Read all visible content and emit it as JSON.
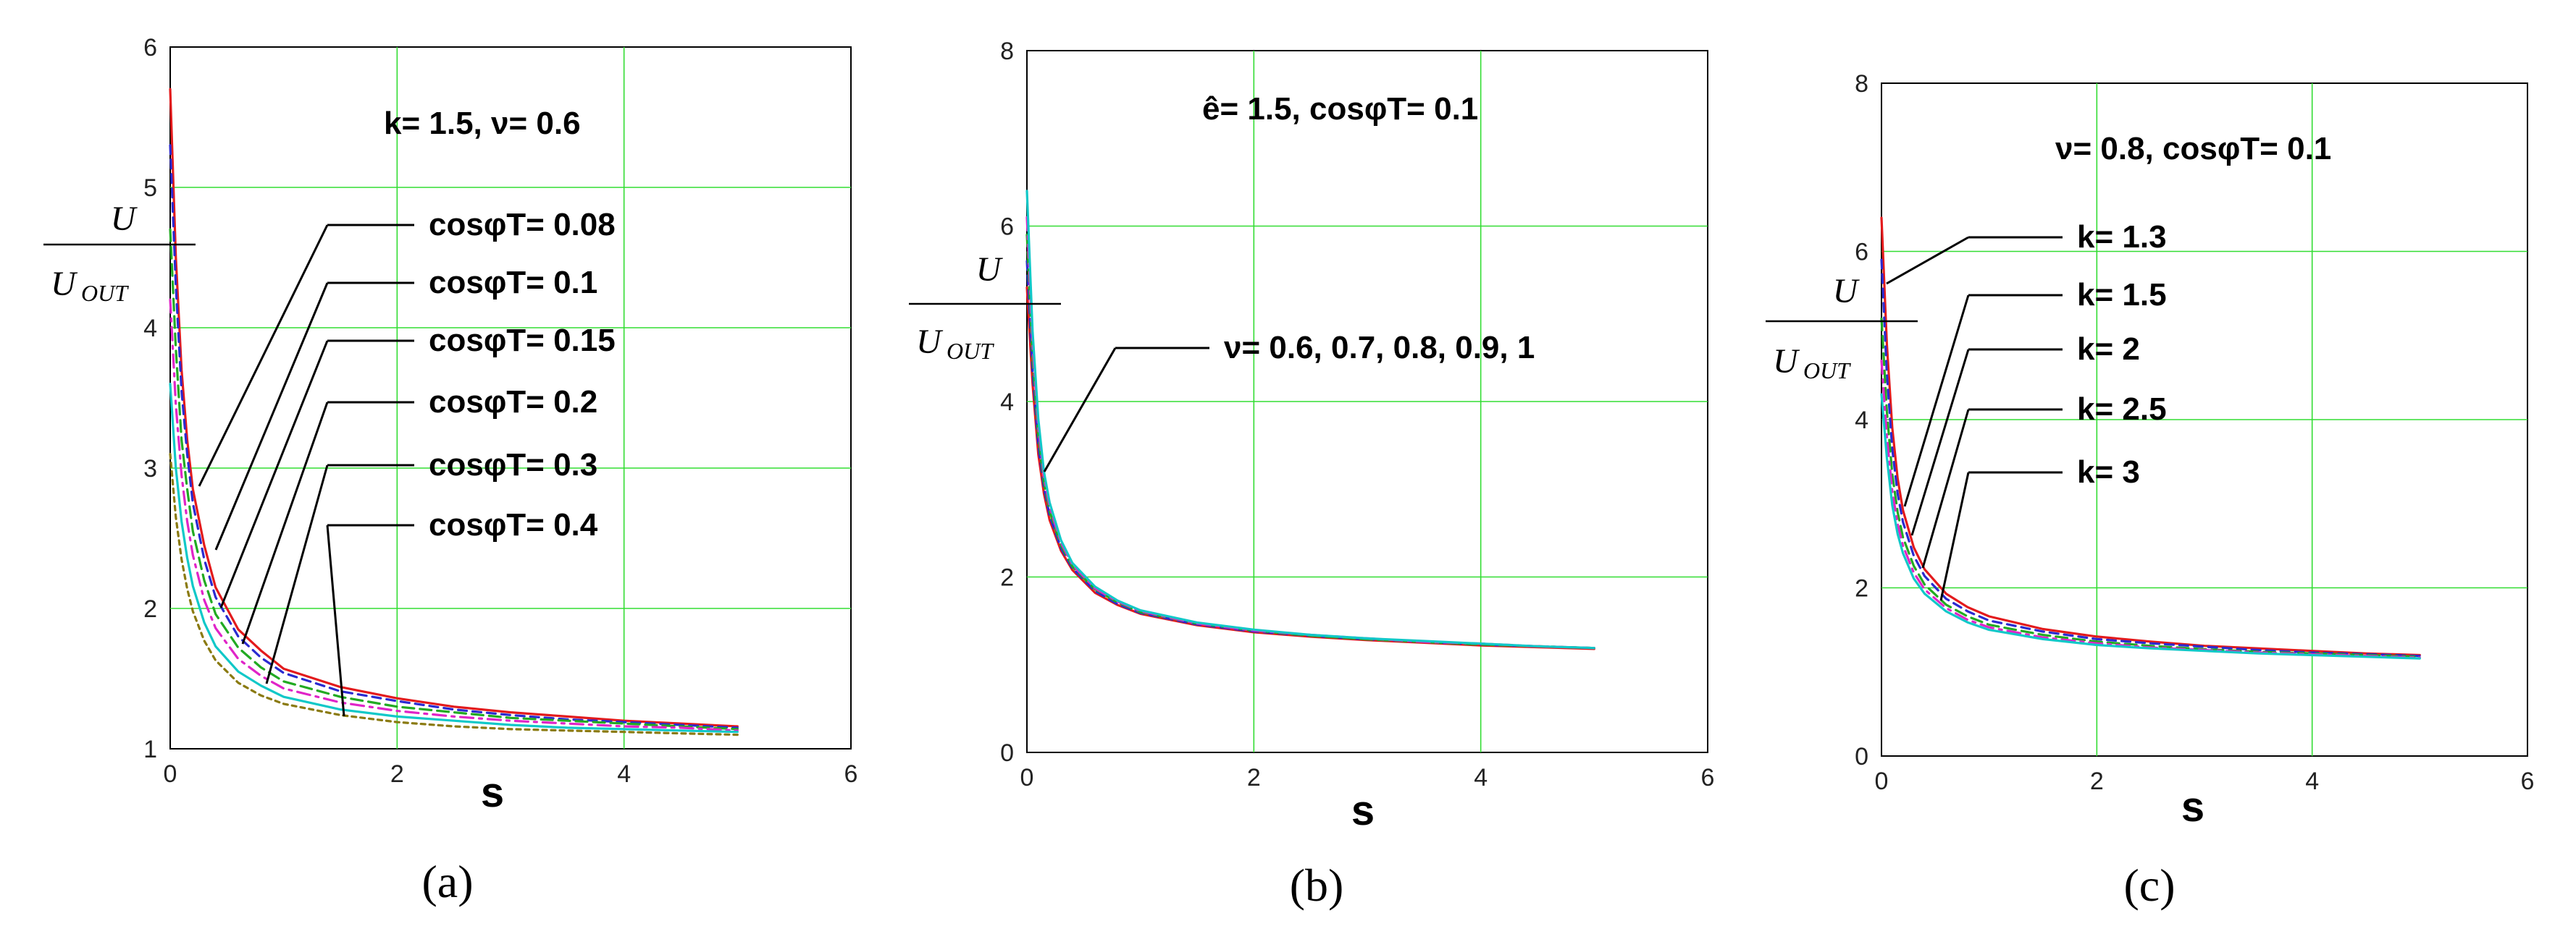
{
  "chart_data": [
    {
      "type": "line",
      "panel": "(a)",
      "panel_letter": "a",
      "title": "k= 1.5, ν= 0.6",
      "xlabel": "s",
      "ylabel_num": "U",
      "ylabel_den": "U",
      "ylabel_den_sub": "OUT",
      "xlim": [
        0,
        6
      ],
      "ylim": [
        1,
        6
      ],
      "xticks": [
        "0",
        "2",
        "4",
        "6"
      ],
      "yticks": [
        "1",
        "2",
        "3",
        "4",
        "5",
        "6"
      ],
      "grid": true,
      "series": [
        {
          "name": "cosφT= 0.08",
          "color": "#e31a1c",
          "dash": "",
          "x": [
            0,
            0.05,
            0.1,
            0.15,
            0.2,
            0.3,
            0.4,
            0.6,
            0.8,
            1,
            1.5,
            2,
            2.5,
            3,
            3.5,
            4,
            4.5,
            5
          ],
          "y": [
            5.7,
            4.5,
            3.7,
            3.2,
            2.85,
            2.45,
            2.15,
            1.85,
            1.7,
            1.57,
            1.44,
            1.36,
            1.3,
            1.26,
            1.23,
            1.2,
            1.18,
            1.16
          ]
        },
        {
          "name": "cosφT= 0.1",
          "color": "#2a2ad0",
          "dash": "12,8",
          "x": [
            0,
            0.05,
            0.1,
            0.15,
            0.2,
            0.3,
            0.4,
            0.6,
            0.8,
            1,
            1.5,
            2,
            2.5,
            3,
            3.5,
            4,
            4.5,
            5
          ],
          "y": [
            5.3,
            4.3,
            3.55,
            3.1,
            2.75,
            2.35,
            2.08,
            1.8,
            1.65,
            1.54,
            1.41,
            1.34,
            1.28,
            1.24,
            1.21,
            1.19,
            1.17,
            1.15
          ]
        },
        {
          "name": "cosφT= 0.15",
          "color": "#22aa22",
          "dash": "16,8",
          "x": [
            0,
            0.05,
            0.1,
            0.15,
            0.2,
            0.3,
            0.4,
            0.6,
            0.8,
            1,
            1.5,
            2,
            2.5,
            3,
            3.5,
            4,
            4.5,
            5
          ],
          "y": [
            4.7,
            3.85,
            3.2,
            2.85,
            2.55,
            2.2,
            1.96,
            1.72,
            1.58,
            1.48,
            1.37,
            1.3,
            1.26,
            1.22,
            1.2,
            1.18,
            1.16,
            1.14
          ]
        },
        {
          "name": "cosφT= 0.2",
          "color": "#e024c8",
          "dash": "18,8,4,8",
          "x": [
            0,
            0.05,
            0.1,
            0.15,
            0.2,
            0.3,
            0.4,
            0.6,
            0.8,
            1,
            1.5,
            2,
            2.5,
            3,
            3.5,
            4,
            4.5,
            5
          ],
          "y": [
            4.2,
            3.45,
            2.95,
            2.62,
            2.38,
            2.06,
            1.86,
            1.64,
            1.52,
            1.43,
            1.33,
            1.27,
            1.23,
            1.2,
            1.18,
            1.16,
            1.15,
            1.13
          ]
        },
        {
          "name": "cosφT= 0.3",
          "color": "#10c8c8",
          "dash": "",
          "x": [
            0,
            0.05,
            0.1,
            0.15,
            0.2,
            0.3,
            0.4,
            0.6,
            0.8,
            1,
            1.5,
            2,
            2.5,
            3,
            3.5,
            4,
            4.5,
            5
          ],
          "y": [
            3.6,
            3.0,
            2.62,
            2.36,
            2.16,
            1.9,
            1.73,
            1.55,
            1.45,
            1.37,
            1.28,
            1.23,
            1.2,
            1.17,
            1.15,
            1.14,
            1.13,
            1.12
          ]
        },
        {
          "name": "cosφT= 0.4",
          "color": "#8a7a10",
          "dash": "6,6",
          "x": [
            0,
            0.05,
            0.1,
            0.15,
            0.2,
            0.3,
            0.4,
            0.6,
            0.8,
            1,
            1.5,
            2,
            2.5,
            3,
            3.5,
            4,
            4.5,
            5
          ],
          "y": [
            3.1,
            2.65,
            2.35,
            2.14,
            1.98,
            1.77,
            1.63,
            1.47,
            1.38,
            1.32,
            1.24,
            1.19,
            1.16,
            1.14,
            1.13,
            1.12,
            1.11,
            1.1
          ]
        }
      ],
      "labels": [
        "cosφT= 0.08",
        "cosφT= 0.1",
        "cosφT= 0.15",
        "cosφT= 0.2",
        "cosφT= 0.3",
        "cosφT= 0.4"
      ]
    },
    {
      "type": "line",
      "panel": "(b)",
      "panel_letter": "b",
      "title": "ê= 1.5, cosφT= 0.1",
      "xlabel": "s",
      "ylabel_num": "U",
      "ylabel_den": "U",
      "ylabel_den_sub": "OUT",
      "xlim": [
        0,
        6
      ],
      "ylim": [
        0,
        8
      ],
      "xticks": [
        "0",
        "2",
        "4",
        "6"
      ],
      "yticks": [
        "0",
        "2",
        "4",
        "6",
        "8"
      ],
      "grid": true,
      "series": [
        {
          "name": "ν= 0.6",
          "color": "#e31a1c",
          "dash": "",
          "x": [
            0,
            0.05,
            0.1,
            0.15,
            0.2,
            0.3,
            0.4,
            0.6,
            0.8,
            1,
            1.5,
            2,
            2.5,
            3,
            3.5,
            4,
            4.5,
            5
          ],
          "y": [
            5.3,
            4.2,
            3.4,
            2.95,
            2.65,
            2.3,
            2.08,
            1.82,
            1.68,
            1.58,
            1.45,
            1.37,
            1.32,
            1.28,
            1.25,
            1.22,
            1.2,
            1.18
          ]
        },
        {
          "name": "ν= 0.7",
          "color": "#2a2ad0",
          "dash": "12,8",
          "x": [
            0,
            0.05,
            0.1,
            0.15,
            0.2,
            0.3,
            0.4,
            0.6,
            0.8,
            1,
            1.5,
            2,
            2.5,
            3,
            3.5,
            4,
            4.5,
            5
          ],
          "y": [
            5.6,
            4.35,
            3.5,
            3.02,
            2.7,
            2.33,
            2.1,
            1.84,
            1.69,
            1.59,
            1.46,
            1.38,
            1.33,
            1.29,
            1.26,
            1.23,
            1.21,
            1.19
          ]
        },
        {
          "name": "ν= 0.8",
          "color": "#22aa22",
          "dash": "16,8",
          "x": [
            0,
            0.05,
            0.1,
            0.15,
            0.2,
            0.3,
            0.4,
            0.6,
            0.8,
            1,
            1.5,
            2,
            2.5,
            3,
            3.5,
            4,
            4.5,
            5
          ],
          "y": [
            5.9,
            4.5,
            3.6,
            3.08,
            2.75,
            2.36,
            2.12,
            1.86,
            1.71,
            1.6,
            1.47,
            1.39,
            1.33,
            1.29,
            1.26,
            1.23,
            1.21,
            1.19
          ]
        },
        {
          "name": "ν= 0.9",
          "color": "#e024c8",
          "dash": "18,8,4,8",
          "x": [
            0,
            0.05,
            0.1,
            0.15,
            0.2,
            0.3,
            0.4,
            0.6,
            0.8,
            1,
            1.5,
            2,
            2.5,
            3,
            3.5,
            4,
            4.5,
            5
          ],
          "y": [
            6.1,
            4.65,
            3.7,
            3.14,
            2.8,
            2.39,
            2.14,
            1.87,
            1.72,
            1.61,
            1.47,
            1.39,
            1.34,
            1.3,
            1.26,
            1.24,
            1.21,
            1.19
          ]
        },
        {
          "name": "ν= 1",
          "color": "#10c8c8",
          "dash": "",
          "x": [
            0,
            0.05,
            0.1,
            0.15,
            0.2,
            0.3,
            0.4,
            0.6,
            0.8,
            1,
            1.5,
            2,
            2.5,
            3,
            3.5,
            4,
            4.5,
            5
          ],
          "y": [
            6.4,
            4.8,
            3.8,
            3.2,
            2.85,
            2.42,
            2.16,
            1.89,
            1.73,
            1.62,
            1.48,
            1.4,
            1.34,
            1.3,
            1.27,
            1.24,
            1.21,
            1.19
          ]
        }
      ],
      "labels": [
        "ν= 0.6, 0.7, 0.8, 0.9, 1"
      ]
    },
    {
      "type": "line",
      "panel": "(c)",
      "panel_letter": "c",
      "title": "ν= 0.8, cosφT= 0.1",
      "xlabel": "s",
      "ylabel_num": "U",
      "ylabel_den": "U",
      "ylabel_den_sub": "OUT",
      "xlim": [
        0,
        6
      ],
      "ylim": [
        0,
        8
      ],
      "xticks": [
        "0",
        "2",
        "4",
        "6"
      ],
      "yticks": [
        "0",
        "2",
        "4",
        "6",
        "8"
      ],
      "grid": true,
      "series": [
        {
          "name": "k= 1.3",
          "color": "#e31a1c",
          "dash": "",
          "x": [
            0,
            0.05,
            0.1,
            0.15,
            0.2,
            0.3,
            0.4,
            0.6,
            0.8,
            1,
            1.5,
            2,
            2.5,
            3,
            3.5,
            4,
            4.5,
            5
          ],
          "y": [
            6.4,
            4.9,
            3.9,
            3.3,
            2.92,
            2.48,
            2.22,
            1.93,
            1.77,
            1.66,
            1.51,
            1.42,
            1.36,
            1.31,
            1.28,
            1.25,
            1.22,
            1.2
          ]
        },
        {
          "name": "k= 1.5",
          "color": "#2a2ad0",
          "dash": "12,8",
          "x": [
            0,
            0.05,
            0.1,
            0.15,
            0.2,
            0.3,
            0.4,
            0.6,
            0.8,
            1,
            1.5,
            2,
            2.5,
            3,
            3.5,
            4,
            4.5,
            5
          ],
          "y": [
            5.9,
            4.55,
            3.65,
            3.12,
            2.78,
            2.38,
            2.14,
            1.87,
            1.72,
            1.61,
            1.48,
            1.39,
            1.34,
            1.3,
            1.26,
            1.23,
            1.21,
            1.19
          ]
        },
        {
          "name": "k= 2",
          "color": "#22aa22",
          "dash": "16,8",
          "x": [
            0,
            0.05,
            0.1,
            0.15,
            0.2,
            0.3,
            0.4,
            0.6,
            0.8,
            1,
            1.5,
            2,
            2.5,
            3,
            3.5,
            4,
            4.5,
            5
          ],
          "y": [
            5.2,
            4.1,
            3.35,
            2.9,
            2.6,
            2.26,
            2.04,
            1.8,
            1.66,
            1.56,
            1.44,
            1.36,
            1.31,
            1.27,
            1.24,
            1.22,
            1.2,
            1.18
          ]
        },
        {
          "name": "k= 2.5",
          "color": "#e024c8",
          "dash": "18,8,4,8",
          "x": [
            0,
            0.05,
            0.1,
            0.15,
            0.2,
            0.3,
            0.4,
            0.6,
            0.8,
            1,
            1.5,
            2,
            2.5,
            3,
            3.5,
            4,
            4.5,
            5
          ],
          "y": [
            4.7,
            3.8,
            3.15,
            2.76,
            2.5,
            2.18,
            1.98,
            1.76,
            1.62,
            1.53,
            1.41,
            1.34,
            1.29,
            1.26,
            1.23,
            1.21,
            1.19,
            1.17
          ]
        },
        {
          "name": "k= 3",
          "color": "#10c8c8",
          "dash": "",
          "x": [
            0,
            0.05,
            0.1,
            0.15,
            0.2,
            0.3,
            0.4,
            0.6,
            0.8,
            1,
            1.5,
            2,
            2.5,
            3,
            3.5,
            4,
            4.5,
            5
          ],
          "y": [
            4.3,
            3.55,
            2.98,
            2.64,
            2.41,
            2.11,
            1.93,
            1.72,
            1.59,
            1.5,
            1.39,
            1.32,
            1.28,
            1.25,
            1.22,
            1.2,
            1.18,
            1.16
          ]
        }
      ],
      "labels": [
        "k= 1.3",
        "k= 1.5",
        "k= 2",
        "k= 2.5",
        "k= 3"
      ]
    }
  ]
}
